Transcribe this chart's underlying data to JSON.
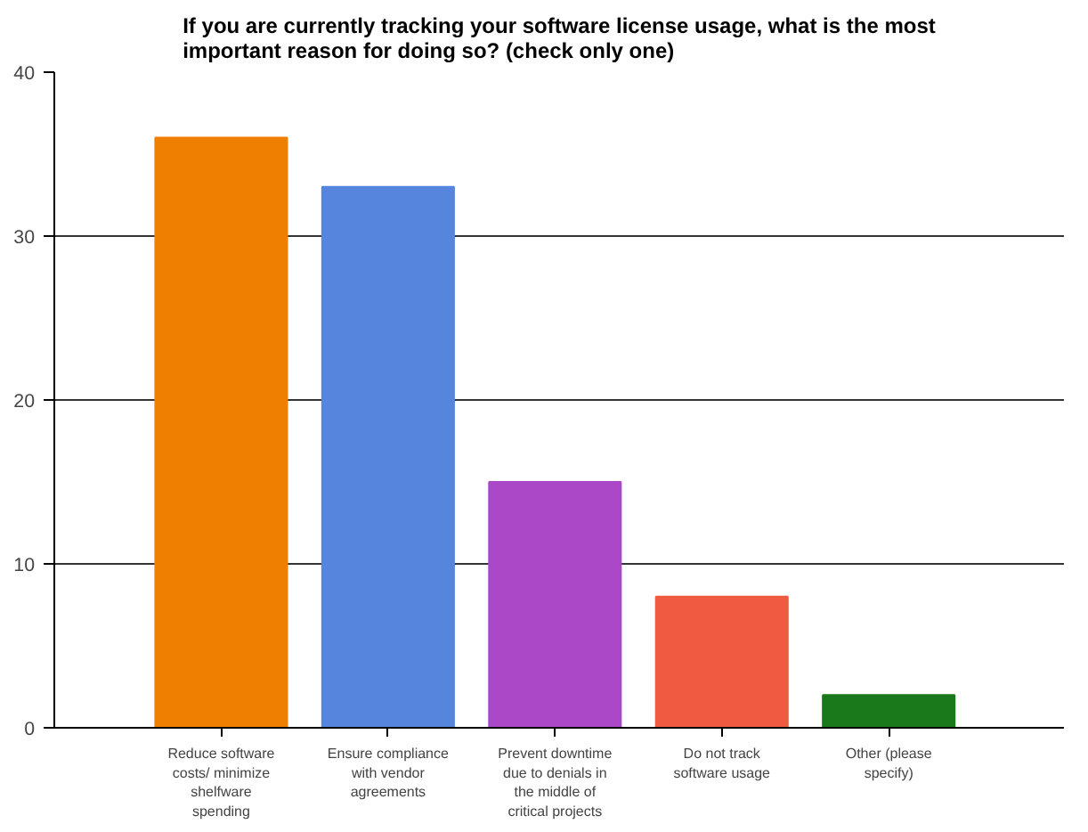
{
  "chart_data": {
    "type": "bar",
    "title": "If you are currently tracking your software license usage, what is the most important reason for doing so? (check only one)",
    "categories": [
      "Reduce software costs/ minimize shelfware spending",
      "Ensure compliance with vendor agreements",
      "Prevent downtime due to denials in the middle of critical projects",
      "Do not track software usage",
      "Other (please specify)"
    ],
    "values": [
      36,
      33,
      15,
      8,
      2
    ],
    "colors": [
      "#ef7f00",
      "#5585dc",
      "#aa48c8",
      "#ef5a40",
      "#1a7a1a"
    ],
    "ylim": [
      0,
      40
    ],
    "yticks": [
      0,
      10,
      20,
      30,
      40
    ],
    "grid": "y"
  }
}
